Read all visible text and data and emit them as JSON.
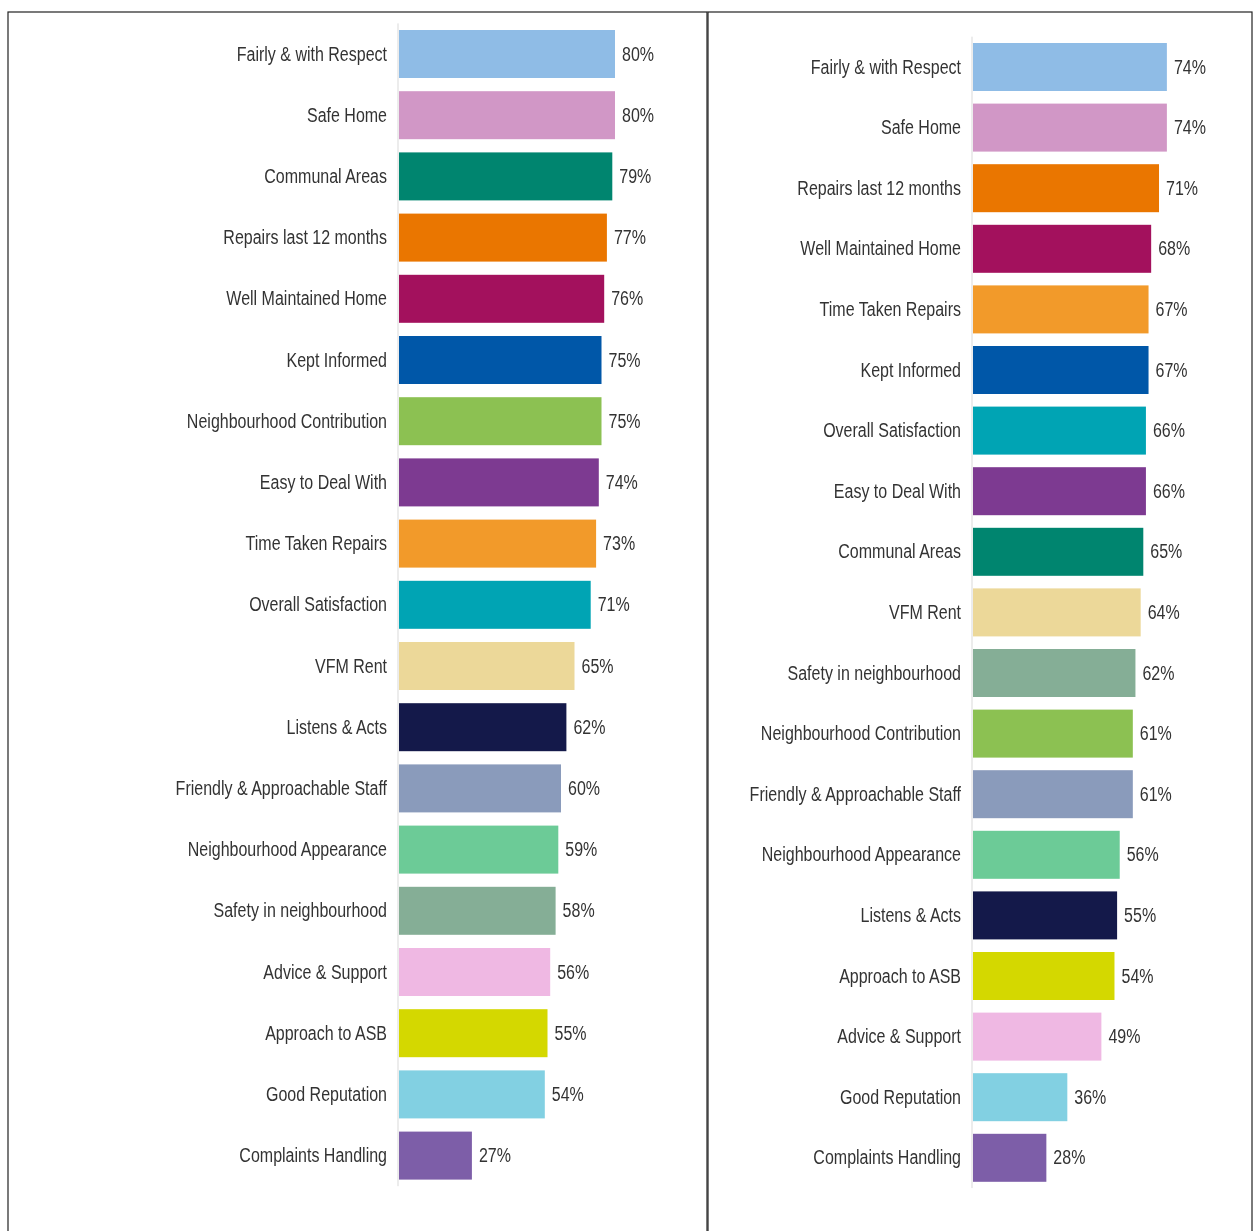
{
  "chart_data": [
    {
      "type": "bar",
      "orientation": "horizontal",
      "categories": [
        "Fairly & with Respect",
        "Safe Home",
        "Communal Areas",
        "Repairs last 12 months",
        "Well Maintained Home",
        "Kept Informed",
        "Neighbourhood Contribution",
        "Easy to Deal With",
        "Time Taken Repairs",
        "Overall Satisfaction",
        "VFM Rent",
        "Listens & Acts",
        "Friendly & Approachable Staff",
        "Neighbourhood Appearance",
        "Safety in neighbourhood",
        "Advice & Support",
        "Approach to ASB",
        "Good Reputation",
        "Complaints Handling"
      ],
      "values": [
        80,
        80,
        79,
        77,
        76,
        75,
        75,
        74,
        73,
        71,
        65,
        62,
        60,
        59,
        58,
        56,
        55,
        54,
        27
      ],
      "value_labels": [
        "80%",
        "80%",
        "79%",
        "77%",
        "76%",
        "75%",
        "75%",
        "74%",
        "73%",
        "71%",
        "65%",
        "62%",
        "60%",
        "59%",
        "58%",
        "56%",
        "55%",
        "54%",
        "27%"
      ],
      "colors": [
        "#8fbce6",
        "#d197c6",
        "#00856f",
        "#ea7600",
        "#a3115d",
        "#0057a8",
        "#8cc152",
        "#7d3a91",
        "#f29a2a",
        "#00a4b4",
        "#ecd899",
        "#14194a",
        "#8a9bbb",
        "#6ccb97",
        "#85ae96",
        "#efb8e3",
        "#d4d800",
        "#82d0e2",
        "#7d5ea8"
      ]
    },
    {
      "type": "bar",
      "orientation": "horizontal",
      "categories": [
        "Fairly & with Respect",
        "Safe Home",
        "Repairs last 12 months",
        "Well Maintained Home",
        "Time Taken Repairs",
        "Kept Informed",
        "Overall Satisfaction",
        "Easy to Deal With",
        "Communal Areas",
        "VFM Rent",
        "Safety in neighbourhood",
        "Neighbourhood Contribution",
        "Friendly & Approachable Staff",
        "Neighbourhood Appearance",
        "Listens & Acts",
        "Approach to ASB",
        "Advice & Support",
        "Good Reputation",
        "Complaints Handling"
      ],
      "values": [
        74,
        74,
        71,
        68,
        67,
        67,
        66,
        66,
        65,
        64,
        62,
        61,
        61,
        56,
        55,
        54,
        49,
        36,
        28
      ],
      "value_labels": [
        "74%",
        "74%",
        "71%",
        "68%",
        "67%",
        "67%",
        "66%",
        "66%",
        "65%",
        "64%",
        "62%",
        "61%",
        "61%",
        "56%",
        "55%",
        "54%",
        "49%",
        "36%",
        "28%"
      ],
      "colors": [
        "#8fbce6",
        "#d197c6",
        "#ea7600",
        "#a3115d",
        "#f29a2a",
        "#0057a8",
        "#00a4b4",
        "#7d3a91",
        "#00856f",
        "#ecd899",
        "#85ae96",
        "#8cc152",
        "#8a9bbb",
        "#6ccb97",
        "#14194a",
        "#d4d800",
        "#efb8e3",
        "#82d0e2",
        "#7d5ea8"
      ]
    }
  ]
}
